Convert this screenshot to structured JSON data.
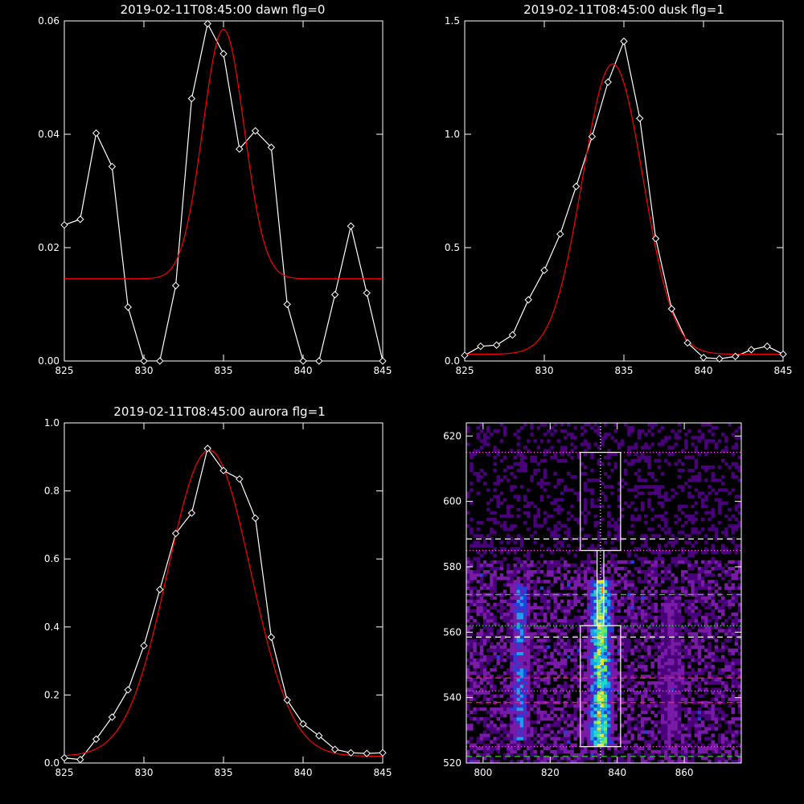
{
  "chart_data": [
    {
      "type": "line",
      "title": "2019-02-11T08:45:00 dawn flg=0",
      "xlim": [
        825,
        845
      ],
      "ylim": [
        0,
        0.06
      ],
      "xticks": [
        "825",
        "830",
        "835",
        "840",
        "845"
      ],
      "yticks": [
        "0.00",
        "0.02",
        "0.04",
        "0.06"
      ],
      "series": [
        {
          "kind": "observed",
          "color": "#ffffff",
          "markers": "diamond",
          "x": [
            825,
            826,
            827,
            828,
            829,
            830,
            831,
            832,
            833,
            834,
            835,
            836,
            837,
            838,
            839,
            840,
            841,
            842,
            843,
            844,
            845
          ],
          "y": [
            0.024,
            0.025,
            0.0402,
            0.0343,
            0.0095,
            0.0,
            0.0,
            0.0133,
            0.0463,
            0.0595,
            0.0542,
            0.0374,
            0.0406,
            0.0377,
            0.01,
            0.0,
            0.0,
            0.0117,
            0.0238,
            0.012,
            0.0
          ]
        },
        {
          "kind": "gaussian_fit",
          "color": "#ff0000",
          "center": 835.0,
          "amplitude": 0.044,
          "sigma": 1.3,
          "offset": 0.0145
        }
      ]
    },
    {
      "type": "line",
      "title": "2019-02-11T08:45:00 dusk flg=1",
      "xlim": [
        825,
        845
      ],
      "ylim": [
        0,
        1.5
      ],
      "xticks": [
        "825",
        "830",
        "835",
        "840",
        "845"
      ],
      "yticks": [
        "0.0",
        "0.5",
        "1.0",
        "1.5"
      ],
      "series": [
        {
          "kind": "observed",
          "color": "#ffffff",
          "markers": "diamond",
          "x": [
            825,
            826,
            827,
            828,
            829,
            830,
            831,
            832,
            833,
            834,
            835,
            836,
            837,
            838,
            839,
            840,
            841,
            842,
            843,
            844,
            845
          ],
          "y": [
            0.025,
            0.065,
            0.07,
            0.115,
            0.27,
            0.4,
            0.56,
            0.77,
            0.99,
            1.23,
            1.41,
            1.07,
            0.54,
            0.23,
            0.08,
            0.015,
            0.01,
            0.02,
            0.05,
            0.065,
            0.03
          ]
        },
        {
          "kind": "gaussian_fit",
          "color": "#ff0000",
          "center": 834.3,
          "amplitude": 1.28,
          "sigma": 1.9,
          "offset": 0.03
        }
      ]
    },
    {
      "type": "line",
      "title": "2019-02-11T08:45:00 aurora flg=1",
      "xlim": [
        825,
        845
      ],
      "ylim": [
        0,
        1.0
      ],
      "xticks": [
        "825",
        "830",
        "835",
        "840",
        "845"
      ],
      "yticks": [
        "0.0",
        "0.2",
        "0.4",
        "0.6",
        "0.8",
        "1.0"
      ],
      "series": [
        {
          "kind": "observed",
          "color": "#ffffff",
          "markers": "diamond",
          "x": [
            825,
            826,
            827,
            828,
            829,
            830,
            831,
            832,
            833,
            834,
            835,
            836,
            837,
            838,
            839,
            840,
            841,
            842,
            843,
            844,
            845
          ],
          "y": [
            0.015,
            0.01,
            0.07,
            0.135,
            0.215,
            0.345,
            0.51,
            0.675,
            0.735,
            0.925,
            0.86,
            0.835,
            0.72,
            0.37,
            0.185,
            0.115,
            0.08,
            0.04,
            0.03,
            0.028,
            0.03
          ]
        },
        {
          "kind": "gaussian_fit",
          "color": "#ff0000",
          "center": 834.1,
          "amplitude": 0.9,
          "sigma": 2.6,
          "offset": 0.02
        }
      ]
    },
    {
      "type": "heatmap",
      "xlim": [
        795,
        877
      ],
      "ylim": [
        520,
        624
      ],
      "xticks": [
        "800",
        "820",
        "840",
        "860"
      ],
      "yticks": [
        "520",
        "540",
        "560",
        "580",
        "600",
        "620"
      ],
      "colormap": [
        "#000000",
        "#4a007a",
        "#7a1aa8",
        "#2a3cd8",
        "#1a9ef0",
        "#20d8c8",
        "#70e860",
        "#e8e820",
        "#ff8a10",
        "#ff1010"
      ],
      "emission_bands": [
        {
          "x_center": 811,
          "x_halfwidth": 3,
          "y_range": [
            527,
            574
          ],
          "strength": 0.55
        },
        {
          "x_center": 835,
          "x_halfwidth": 4,
          "y_range": [
            525,
            575
          ],
          "strength": 0.95
        },
        {
          "x_center": 856,
          "x_halfwidth": 2.5,
          "y_range": [
            528,
            570
          ],
          "strength": 0.3
        }
      ],
      "center_line_x": 835,
      "boxes": [
        {
          "x": [
            829,
            841
          ],
          "y": [
            525,
            562
          ],
          "color": "#ffffff"
        },
        {
          "x": [
            829,
            841
          ],
          "y": [
            585,
            615
          ],
          "color": "#ffffff"
        }
      ],
      "neck_x": [
        834,
        836
      ],
      "hlines": [
        {
          "y": 615,
          "color": "#ff66ff",
          "style": "dotted"
        },
        {
          "y": 588.5,
          "color": "#ffffff",
          "style": "dashed"
        },
        {
          "y": 585,
          "color": "#ff66ff",
          "style": "dotted"
        },
        {
          "y": 571.5,
          "color": "#2ecc2e",
          "style": "dashed"
        },
        {
          "y": 562,
          "color": "#55ff55",
          "style": "dotted"
        },
        {
          "y": 558.5,
          "color": "#ffffff",
          "style": "dashed"
        },
        {
          "y": 546,
          "color": "#ff2255",
          "style": "dashed"
        },
        {
          "y": 542,
          "color": "#ff66ff",
          "style": "dotted"
        },
        {
          "y": 538.5,
          "color": "#ff2255",
          "style": "dashed"
        },
        {
          "y": 525,
          "color": "#ff66ff",
          "style": "dotted"
        },
        {
          "y": 522,
          "color": "#2ecc2e",
          "style": "dashed"
        }
      ]
    }
  ]
}
